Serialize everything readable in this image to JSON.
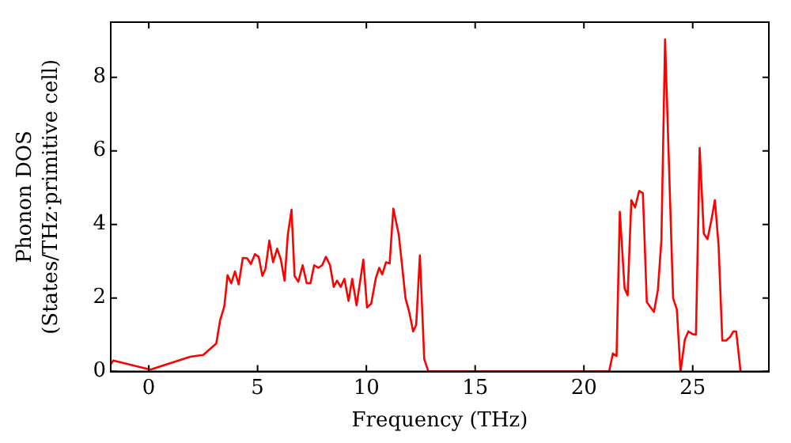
{
  "chart_data": {
    "type": "line",
    "xlabel": "Frequency (THz)",
    "ylabel": "Phonon DOS\n(States/THz·primitive cell)",
    "xlim": [
      -1.75,
      28.5
    ],
    "ylim": [
      0,
      9.5
    ],
    "xticks": [
      0,
      5,
      10,
      15,
      20,
      25
    ],
    "yticks": [
      0,
      2,
      4,
      6,
      8
    ],
    "grid": false,
    "legend": false,
    "marker": "none",
    "line_style": "solid",
    "series": [
      {
        "color": "#ff0000",
        "x": [
          -1.75,
          -1.63,
          0.07,
          1.9,
          2.5,
          3.1,
          3.28,
          3.47,
          3.62,
          3.79,
          3.96,
          4.13,
          4.32,
          4.52,
          4.69,
          4.88,
          5.05,
          5.22,
          5.36,
          5.54,
          5.71,
          5.9,
          6.07,
          6.24,
          6.39,
          6.56,
          6.7,
          6.87,
          7.07,
          7.26,
          7.43,
          7.6,
          7.8,
          7.97,
          8.14,
          8.33,
          8.5,
          8.65,
          8.82,
          8.99,
          9.18,
          9.35,
          9.55,
          9.86,
          10.03,
          10.22,
          10.44,
          10.59,
          10.73,
          10.9,
          11.07,
          11.24,
          11.49,
          11.8,
          11.97,
          12.15,
          12.29,
          12.46,
          12.66,
          12.85,
          21.16,
          21.33,
          21.5,
          21.65,
          21.87,
          22.01,
          22.18,
          22.35,
          22.54,
          22.71,
          22.89,
          23.03,
          23.22,
          23.4,
          23.56,
          23.73,
          24.1,
          24.27,
          24.44,
          24.64,
          24.8,
          24.98,
          25.15,
          25.32,
          25.51,
          25.68,
          25.85,
          26.02,
          26.19,
          26.36,
          26.53,
          26.72,
          26.87,
          27.0,
          27.2
        ],
        "values": [
          0.2,
          0.3,
          0.05,
          0.4,
          0.45,
          0.76,
          1.4,
          1.77,
          2.62,
          2.4,
          2.72,
          2.37,
          3.09,
          3.08,
          2.92,
          3.19,
          3.12,
          2.6,
          2.79,
          3.56,
          2.97,
          3.34,
          3.04,
          2.47,
          3.72,
          4.4,
          2.6,
          2.44,
          2.89,
          2.4,
          2.4,
          2.89,
          2.82,
          2.89,
          3.12,
          2.89,
          2.3,
          2.47,
          2.3,
          2.52,
          1.92,
          2.52,
          1.8,
          3.04,
          1.74,
          1.84,
          2.55,
          2.82,
          2.64,
          2.97,
          2.94,
          4.43,
          3.72,
          1.99,
          1.62,
          1.09,
          1.27,
          3.16,
          0.34,
          0,
          0,
          0.49,
          0.42,
          4.34,
          2.26,
          2.07,
          4.66,
          4.46,
          4.91,
          4.85,
          1.89,
          1.77,
          1.62,
          2.22,
          3.56,
          9.03,
          1.99,
          1.69,
          0,
          0.87,
          1.09,
          1.02,
          1.0,
          6.08,
          3.75,
          3.6,
          4.09,
          4.66,
          3.42,
          0.84,
          0.84,
          0.94,
          1.09,
          1.09,
          0
        ]
      }
    ]
  }
}
